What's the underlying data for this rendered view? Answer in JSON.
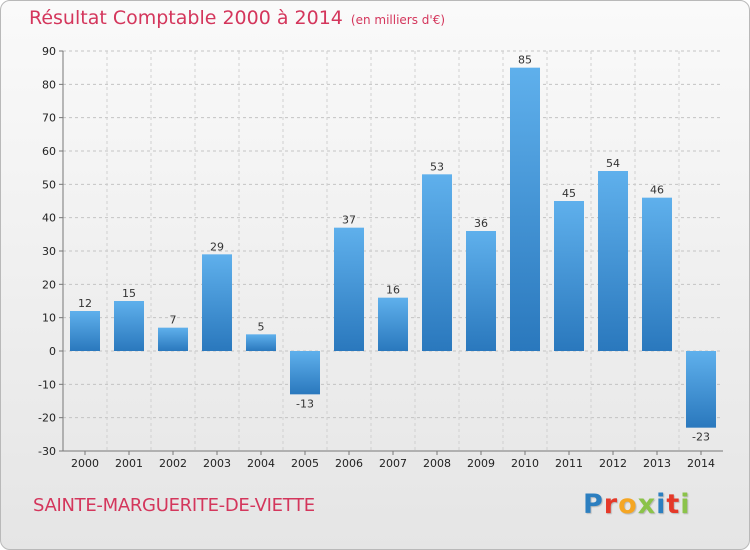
{
  "chart_data": {
    "type": "bar",
    "title": "Résultat Comptable 2000 à 2014",
    "subtitle": "(en milliers d'€)",
    "categories": [
      "2000",
      "2001",
      "2002",
      "2003",
      "2004",
      "2005",
      "2006",
      "2007",
      "2008",
      "2009",
      "2010",
      "2011",
      "2012",
      "2013",
      "2014"
    ],
    "values": [
      12,
      15,
      7,
      29,
      5,
      -13,
      37,
      16,
      53,
      36,
      85,
      45,
      54,
      46,
      -23
    ],
    "value_labels": [
      "12",
      "15",
      "7",
      "29",
      "5",
      "-13",
      "37",
      "16",
      "53",
      "36",
      "85",
      "45",
      "54",
      "46",
      "-23"
    ],
    "ylim": [
      -30,
      90
    ],
    "yticks": [
      -30,
      -20,
      -10,
      0,
      10,
      20,
      30,
      40,
      50,
      60,
      70,
      80,
      90
    ],
    "ytick_labels": [
      "-30",
      "-20",
      "-10",
      "0",
      "10",
      "20",
      "30",
      "40",
      "50",
      "60",
      "70",
      "80",
      "90"
    ],
    "xlabel": "",
    "ylabel": "",
    "grid": true,
    "bar_color": "#3b8fd6"
  },
  "footer": {
    "commune": "SAINTE-MARGUERITE-DE-VIETTE",
    "logo_letters": [
      "P",
      "r",
      "o",
      "x",
      "i",
      "t",
      "i"
    ]
  }
}
